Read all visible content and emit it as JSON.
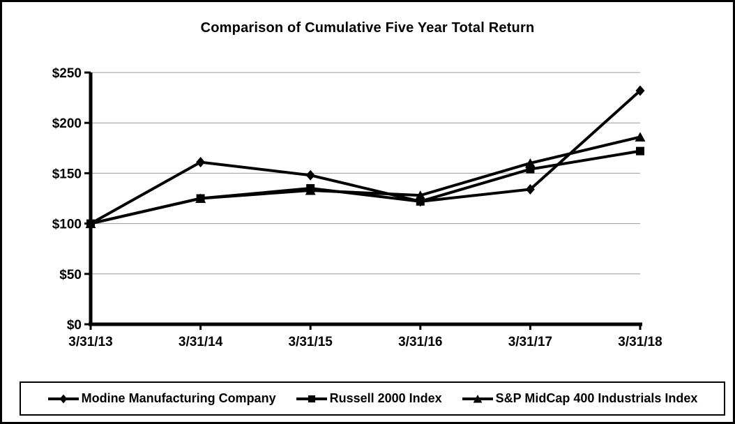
{
  "title": "Comparison of Cumulative Five Year Total Return",
  "chart_data": {
    "type": "line",
    "title": "Comparison of Cumulative Five Year Total Return",
    "x": [
      "3/31/13",
      "3/31/14",
      "3/31/15",
      "3/31/16",
      "3/31/17",
      "3/31/18"
    ],
    "series": [
      {
        "name": "Modine Manufacturing Company",
        "marker": "diamond",
        "color": "#000000",
        "values": [
          100,
          161,
          148,
          122,
          134,
          232
        ]
      },
      {
        "name": "Russell 2000 Index",
        "marker": "square",
        "color": "#000000",
        "values": [
          100,
          125,
          135,
          122,
          154,
          172
        ]
      },
      {
        "name": "S&P MidCap 400 Industrials Index",
        "marker": "triangle",
        "color": "#000000",
        "values": [
          100,
          125,
          133,
          128,
          160,
          186
        ]
      }
    ],
    "xlabel": "",
    "ylabel": "",
    "ylim": [
      0,
      250
    ],
    "ytick_step": 50,
    "ytick_labels": [
      "$0",
      "$50",
      "$100",
      "$150",
      "$200",
      "$250"
    ],
    "grid": true,
    "grid_color": "#999999",
    "axis_color": "#000000",
    "legend_position": "bottom",
    "marker_draw_order": [
      0,
      2,
      1
    ]
  }
}
